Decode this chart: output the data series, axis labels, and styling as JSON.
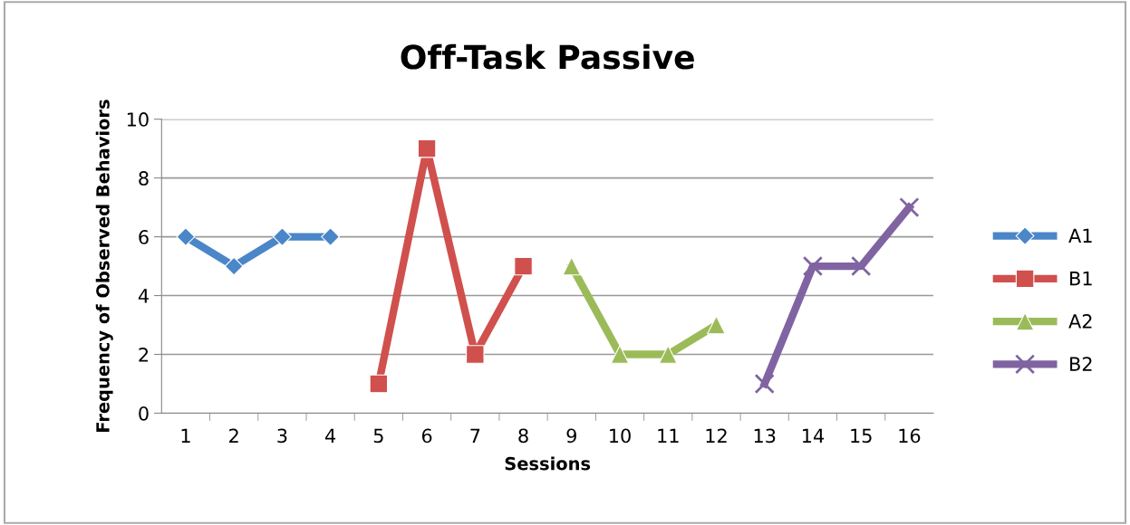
{
  "chart_data": {
    "type": "line",
    "title": "Off-Task Passive",
    "xlabel": "Sessions",
    "ylabel": "Frequency of Observed Behaviors",
    "categories": [
      "1",
      "2",
      "3",
      "4",
      "5",
      "6",
      "7",
      "8",
      "9",
      "10",
      "11",
      "12",
      "13",
      "14",
      "15",
      "16"
    ],
    "series": [
      {
        "name": "A1",
        "color": "#4a86c8",
        "marker": "diamond",
        "values": [
          6,
          5,
          6,
          6,
          null,
          null,
          null,
          null,
          null,
          null,
          null,
          null,
          null,
          null,
          null,
          null
        ]
      },
      {
        "name": "B1",
        "color": "#d0504d",
        "marker": "square",
        "values": [
          null,
          null,
          null,
          null,
          1,
          9,
          2,
          5,
          null,
          null,
          null,
          null,
          null,
          null,
          null,
          null
        ]
      },
      {
        "name": "A2",
        "color": "#9bbb59",
        "marker": "triangle",
        "values": [
          null,
          null,
          null,
          null,
          null,
          null,
          null,
          null,
          5,
          2,
          2,
          3,
          null,
          null,
          null,
          null
        ]
      },
      {
        "name": "B2",
        "color": "#8064a2",
        "marker": "cross",
        "values": [
          null,
          null,
          null,
          null,
          null,
          null,
          null,
          null,
          null,
          null,
          null,
          null,
          1,
          5,
          5,
          7
        ]
      }
    ],
    "ylim": [
      0,
      10
    ],
    "yticks": [
      0,
      2,
      4,
      6,
      8,
      10
    ],
    "grid": "y",
    "legend": "right",
    "line_style": "solid"
  }
}
